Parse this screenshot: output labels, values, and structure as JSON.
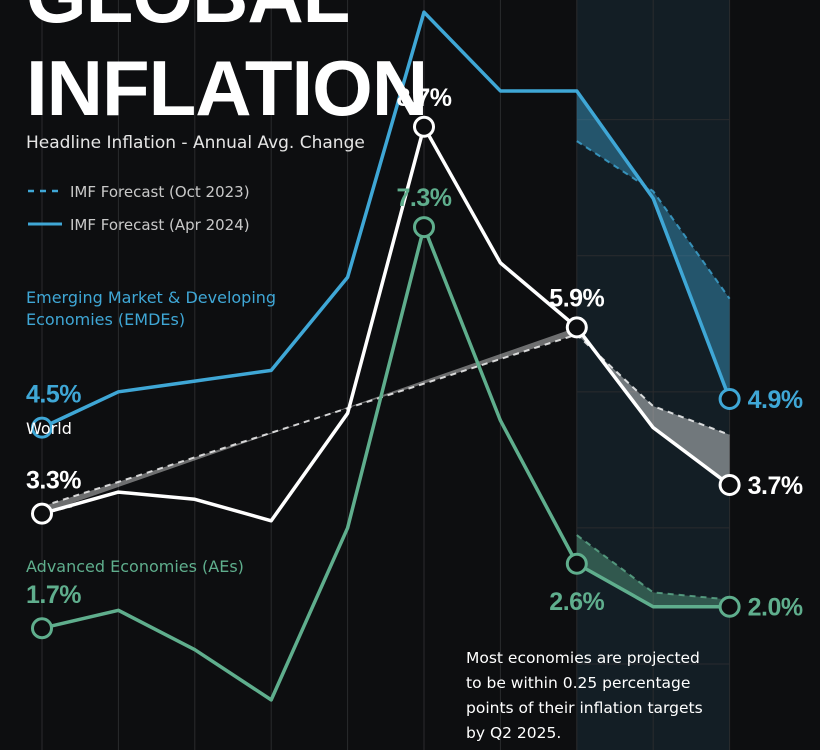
{
  "header": {
    "title_lines": [
      "GLOBAL",
      "INFLATION"
    ],
    "subtitle": "Headline Inflation - Annual Avg. Change"
  },
  "legend": {
    "oct": "IMF Forecast (Oct 2023)",
    "apr": "IMF Forecast (Apr 2024)"
  },
  "labels": {
    "emdes_lines": [
      "Emerging Market & Developing",
      "Economies (EMDEs)"
    ],
    "world": "World",
    "aes": "Advanced Economies (AEs)"
  },
  "note_lines": [
    "Most economies are projected",
    "to be within 0.25 percentage",
    "points of their inflation targets",
    "by Q2 2025."
  ],
  "colors": {
    "background": "#0d0e10",
    "emdes": "#3fa7d6",
    "world": "#ffffff",
    "aes": "#5fae8d",
    "forecast_band": "#1f3d4c",
    "grid": "#2a2b2e"
  },
  "chart_data": {
    "type": "line",
    "title": "GLOBAL INFLATION",
    "subtitle": "Headline Inflation - Annual Avg. Change",
    "ylim": [
      0,
      10.4
    ],
    "grid": true,
    "forecast_from_index": 7,
    "series": [
      {
        "name": "Emerging Market & Developing Economies (EMDEs)",
        "key": "emdes",
        "apr2024": [
          4.5,
          5.0,
          5.15,
          5.3,
          6.6,
          10.3,
          9.2,
          9.2,
          7.7,
          4.9
        ],
        "oct2023": [
          null,
          null,
          null,
          null,
          null,
          null,
          null,
          8.5,
          7.8,
          6.3
        ],
        "markers": [
          0,
          9
        ],
        "labels": {
          "0": "4.5%",
          "9": "4.9%"
        }
      },
      {
        "name": "World",
        "key": "world",
        "apr2024": [
          3.3,
          3.6,
          3.5,
          3.2,
          4.7,
          8.7,
          6.8,
          5.9,
          4.5,
          3.7
        ],
        "oct2023": [
          3.4,
          null,
          null,
          null,
          null,
          null,
          null,
          5.8,
          4.8,
          4.4
        ],
        "markers": [
          0,
          5,
          7,
          9
        ],
        "labels": {
          "0": "3.3%",
          "5": "8.7%",
          "7": "5.9%",
          "9": "3.7%"
        }
      },
      {
        "name": "Advanced Economies (AEs)",
        "key": "aes",
        "apr2024": [
          1.7,
          1.95,
          1.4,
          0.7,
          3.1,
          7.3,
          4.6,
          2.6,
          2.0,
          2.0
        ],
        "oct2023": [
          null,
          null,
          null,
          null,
          null,
          null,
          null,
          3.0,
          2.2,
          2.1
        ],
        "markers": [
          0,
          5,
          7,
          9
        ],
        "labels": {
          "0": "1.7%",
          "5": "7.3%",
          "7": "2.6%",
          "9": "2.0%"
        }
      }
    ]
  }
}
